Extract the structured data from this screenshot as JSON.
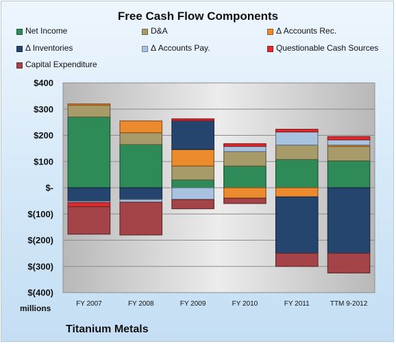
{
  "chart_data": {
    "type": "bar",
    "title": "Free Cash Flow Components",
    "categories": [
      "FY 2007",
      "FY 2008",
      "FY 2009",
      "FY 2010",
      "FY 2011",
      "TTM 9-2012"
    ],
    "ylim": [
      -400,
      400
    ],
    "yticks": [
      400,
      300,
      200,
      100,
      0,
      -100,
      -200,
      -300,
      -400
    ],
    "ytick_labels": [
      "$400",
      "$300",
      "$200",
      "$100",
      "$-",
      "$(100)",
      "$(200)",
      "$(300)",
      "$(400)"
    ],
    "units_label": "millions",
    "grid": true,
    "legend_position": "top",
    "stacked": true,
    "series": [
      {
        "name": "Net Income",
        "color": "#2e8b57",
        "values": [
          270,
          165,
          30,
          83,
          108,
          103
        ]
      },
      {
        "name": "D&A",
        "color": "#a89b6a",
        "values": [
          45,
          45,
          53,
          55,
          55,
          55
        ]
      },
      {
        "name": "Δ Accounts Rec.",
        "color": "#ec8b2e",
        "values": [
          5,
          45,
          63,
          -40,
          -35,
          5
        ]
      },
      {
        "name": "Δ Inventories",
        "color": "#26456e",
        "values": [
          -52,
          -45,
          110,
          0,
          -215,
          -250
        ]
      },
      {
        "name": "Δ Accounts Pay.",
        "color": "#a7c3e0",
        "values": [
          -5,
          -10,
          -45,
          20,
          50,
          20
        ]
      },
      {
        "name": "Questionable Cash Sources",
        "color": "#e22a2e",
        "values": [
          -15,
          0,
          7,
          10,
          10,
          12
        ]
      },
      {
        "name": "Capital Expenditure",
        "color": "#a44448",
        "values": [
          -105,
          -125,
          -35,
          -20,
          -50,
          -75
        ]
      }
    ]
  },
  "footer": {
    "units": "millions",
    "company": "Titanium Metals"
  }
}
